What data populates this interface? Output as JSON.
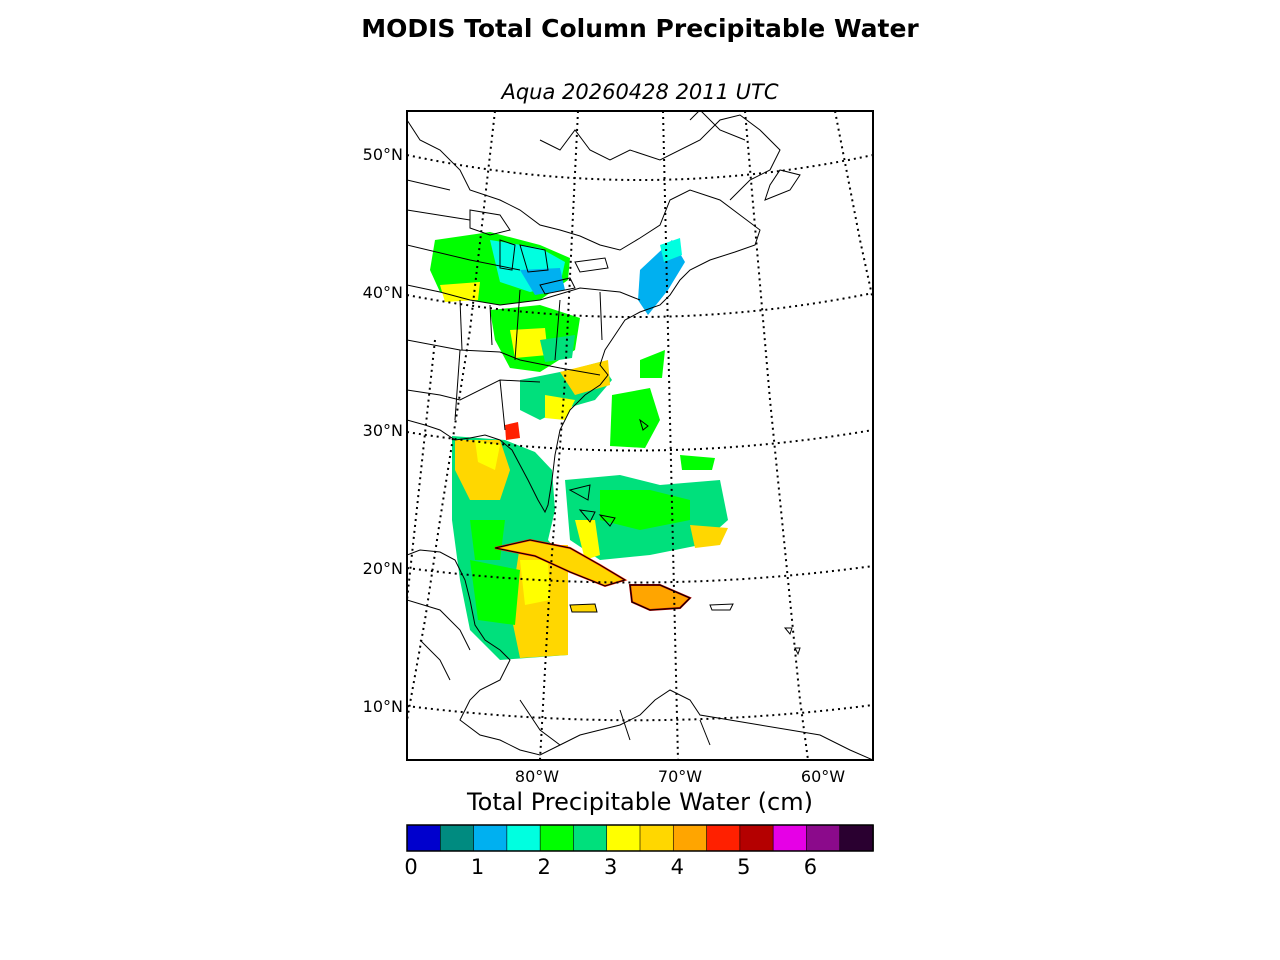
{
  "title": "MODIS Total Column Precipitable Water",
  "subtitle": "Aqua 20260428 2011 UTC",
  "lat_labels": [
    {
      "text": "50°N",
      "lat": 50
    },
    {
      "text": "40°N",
      "lat": 40
    },
    {
      "text": "30°N",
      "lat": 30
    },
    {
      "text": "20°N",
      "lat": 20
    },
    {
      "text": "10°N",
      "lat": 10
    }
  ],
  "lon_labels": [
    {
      "text": "80°W",
      "lon": -80
    },
    {
      "text": "70°W",
      "lon": -70
    },
    {
      "text": "60°W",
      "lon": -60
    }
  ],
  "colorbar": {
    "label": "Total Precipitable Water (cm)",
    "min": 0,
    "max": 7,
    "step": 0.5,
    "colors": [
      "#0000cd",
      "#008b80",
      "#00b0f0",
      "#00ffe0",
      "#00ff00",
      "#00e07c",
      "#ffff00",
      "#ffd700",
      "#ffa500",
      "#ff2000",
      "#b40000",
      "#e600e6",
      "#8b0a8b",
      "#2a0030"
    ],
    "ticks": [
      "0",
      "1",
      "2",
      "3",
      "4",
      "5",
      "6"
    ]
  },
  "map_features": {
    "land": "coastlines",
    "boundaries": "country and state borders",
    "graticule": "dotted"
  }
}
